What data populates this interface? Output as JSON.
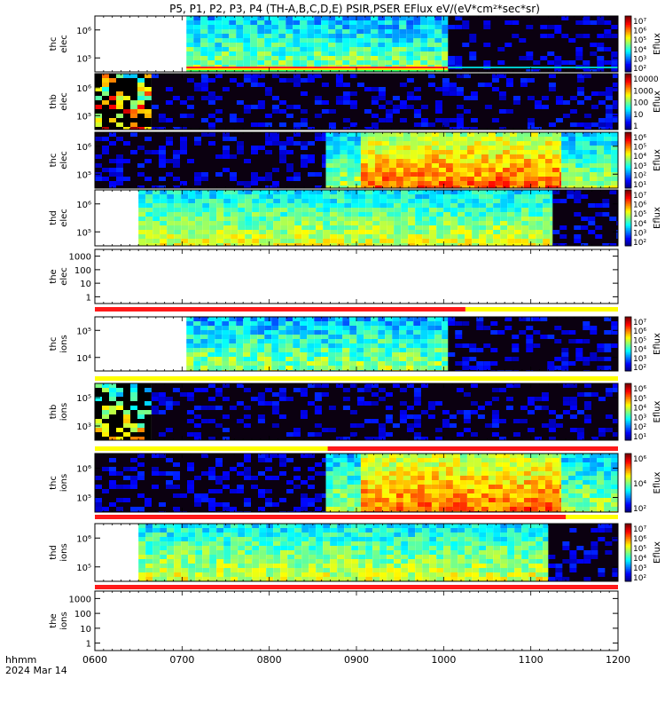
{
  "chart_data": {
    "type": "heatmap",
    "title": "P5, P1, P2, P3, P4 (TH-A,B,C,D,E) PSIR,PSER EFlux eV/(eV*cm²*sec*sr)",
    "x_axis": {
      "ticks": [
        "0600",
        "0700",
        "0800",
        "0900",
        "1000",
        "1100",
        "1200"
      ],
      "range_hours": [
        6,
        12
      ],
      "label_line1": "hhmm",
      "label_line2": "2024 Mar 14"
    },
    "panels": [
      {
        "id": "tha_elec",
        "label1": "thc",
        "label2": "elec",
        "yticks": [
          "10⁵",
          "10⁶"
        ],
        "colorbar": {
          "title": "Eflux",
          "ticks": [
            "10⁷",
            "10⁶",
            "10⁵",
            "10⁴",
            "10³",
            "10²"
          ]
        },
        "segments": [
          [
            6.0,
            7.05,
            "none"
          ],
          [
            7.05,
            10.05,
            "high"
          ],
          [
            10.05,
            12.0,
            "low"
          ]
        ],
        "bottom_band": [
          [
            7.05,
            10.05,
            "mixed"
          ],
          [
            10.05,
            12.0,
            "cyan"
          ]
        ]
      },
      {
        "id": "thb_elec",
        "label1": "thb",
        "label2": "elec",
        "yticks": [
          "10⁵",
          "10⁶"
        ],
        "colorbar": {
          "title": "Eflux",
          "ticks": [
            "10000",
            "1000",
            "100",
            "10",
            "1"
          ]
        },
        "segments": [
          [
            6.0,
            6.65,
            "speckle_green"
          ],
          [
            6.65,
            12.0,
            "low"
          ]
        ]
      },
      {
        "id": "thc_elec",
        "label1": "thc",
        "label2": "elec",
        "yticks": [
          "10⁵",
          "10⁶"
        ],
        "colorbar": {
          "title": "Eflux",
          "ticks": [
            "10⁶",
            "10⁵",
            "10⁴",
            "10³",
            "10²",
            "10¹"
          ]
        },
        "segments": [
          [
            6.0,
            8.65,
            "low"
          ],
          [
            8.65,
            9.05,
            "blue_mid"
          ],
          [
            9.05,
            11.35,
            "green_high"
          ],
          [
            11.35,
            12.0,
            "blue_mid"
          ]
        ]
      },
      {
        "id": "thd_elec",
        "label1": "thd",
        "label2": "elec",
        "yticks": [
          "10⁵",
          "10⁶"
        ],
        "colorbar": {
          "title": "Eflux",
          "ticks": [
            "10⁷",
            "10⁶",
            "10⁵",
            "10⁴",
            "10³",
            "10²"
          ]
        },
        "segments": [
          [
            6.0,
            6.5,
            "none"
          ],
          [
            6.5,
            11.25,
            "blue_high"
          ],
          [
            11.25,
            12.0,
            "low"
          ]
        ]
      },
      {
        "id": "the_elec",
        "label1": "the",
        "label2": "elec",
        "yticks": [
          "1",
          "10",
          "100",
          "1000"
        ],
        "colorbar": null,
        "segments": [
          [
            6.0,
            12.0,
            "none"
          ]
        ]
      },
      {
        "id": "tha_ions",
        "label1": "thc",
        "label2": "ions",
        "yticks": [
          "10⁴",
          "10⁵"
        ],
        "colorbar": {
          "title": "Eflux",
          "ticks": [
            "10⁷",
            "10⁶",
            "10⁵",
            "10⁴",
            "10³",
            "10²"
          ]
        },
        "segments": [
          [
            6.0,
            7.05,
            "none"
          ],
          [
            7.05,
            10.05,
            "high"
          ],
          [
            10.05,
            12.0,
            "low"
          ]
        ]
      },
      {
        "id": "thb_ions",
        "label1": "thb",
        "label2": "ions",
        "yticks": [
          "10³",
          "10⁵"
        ],
        "colorbar": {
          "title": "Eflux",
          "ticks": [
            "10⁶",
            "10⁵",
            "10⁴",
            "10³",
            "10²",
            "10¹"
          ]
        },
        "segments": [
          [
            6.0,
            6.65,
            "speckle_cyan"
          ],
          [
            6.65,
            12.0,
            "low"
          ]
        ]
      },
      {
        "id": "thc_ions",
        "label1": "thc",
        "label2": "ions",
        "yticks": [
          "10⁵",
          "10⁶"
        ],
        "colorbar": {
          "title": "Eflux",
          "ticks": [
            "10⁶",
            "10⁴",
            "10²"
          ]
        },
        "segments": [
          [
            6.0,
            8.65,
            "low"
          ],
          [
            8.65,
            9.05,
            "blue_mid"
          ],
          [
            9.05,
            11.35,
            "green_high"
          ],
          [
            11.35,
            12.0,
            "blue_mid"
          ]
        ]
      },
      {
        "id": "thd_ions",
        "label1": "thd",
        "label2": "ions",
        "yticks": [
          "10⁵",
          "10⁶"
        ],
        "colorbar": {
          "title": "Eflux",
          "ticks": [
            "10⁷",
            "10⁶",
            "10⁵",
            "10⁴",
            "10³",
            "10²"
          ]
        },
        "segments": [
          [
            6.0,
            6.5,
            "none"
          ],
          [
            6.5,
            11.2,
            "blue_high"
          ],
          [
            11.2,
            12.0,
            "low"
          ]
        ]
      },
      {
        "id": "the_ions",
        "label1": "the",
        "label2": "ions",
        "yticks": [
          "1",
          "10",
          "100",
          "1000"
        ],
        "colorbar": null,
        "segments": [
          [
            6.0,
            12.0,
            "none"
          ]
        ]
      }
    ],
    "status_bars": [
      {
        "after_panel": 4,
        "segments": [
          [
            6.0,
            10.25,
            "#ff1a1a"
          ],
          [
            10.25,
            12.0,
            "#ffff00"
          ]
        ]
      },
      {
        "after_panel": 5,
        "segments": [
          [
            6.0,
            12.0,
            "#ffff00"
          ]
        ]
      },
      {
        "after_panel": 6,
        "segments": [
          [
            6.0,
            8.67,
            "#ffff00"
          ],
          [
            8.67,
            12.0,
            "#ff1a1a"
          ]
        ]
      },
      {
        "after_panel": 7,
        "segments": [
          [
            6.0,
            11.4,
            "#ff1a1a"
          ],
          [
            11.4,
            12.0,
            "#ffff00"
          ]
        ]
      },
      {
        "after_panel": 8,
        "segments": [
          [
            6.0,
            12.0,
            "#ff1a1a"
          ]
        ]
      }
    ]
  }
}
